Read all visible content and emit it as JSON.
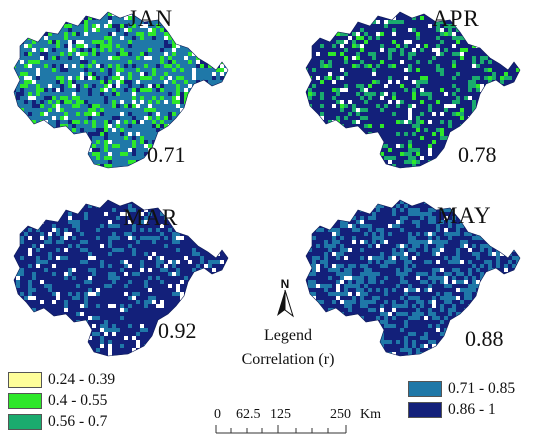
{
  "panels": [
    {
      "month": "JAN",
      "r": "0.71",
      "palette": "jan"
    },
    {
      "month": "APR",
      "r": "0.78",
      "palette": "apr"
    },
    {
      "month": "MAR",
      "r": "0.92",
      "palette": "mar"
    },
    {
      "month": "MAY",
      "r": "0.88",
      "palette": "may"
    }
  ],
  "north_label": "N",
  "legend_title": "Legend",
  "legend_subtitle": "Correlation (r)",
  "legend_left": [
    {
      "label": "0.24 - 0.39",
      "color": "#fefe9a"
    },
    {
      "label": "0.4 - 0.55",
      "color": "#2ee82a"
    },
    {
      "label": "0.56 - 0.7",
      "color": "#1aab6e"
    }
  ],
  "legend_right": [
    {
      "label": "0.71 - 0.85",
      "color": "#1f78a8"
    },
    {
      "label": "0.86 - 1",
      "color": "#13207a"
    }
  ],
  "scalebar": {
    "labels": [
      "0",
      "62.5",
      "125",
      "250"
    ],
    "unit": "Km"
  }
}
